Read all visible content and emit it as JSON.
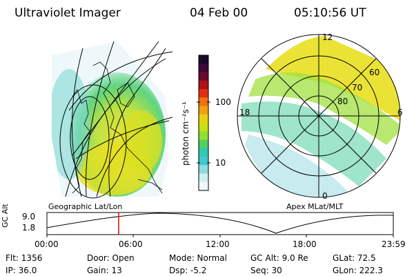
{
  "header": {
    "instrument": "Ultraviolet Imager",
    "date": "04 Feb 00",
    "time": "05:10:56 UT"
  },
  "colorbar": {
    "unit_label": "photon cm⁻²s⁻¹",
    "ticks": [
      "100",
      "10"
    ],
    "colors": [
      "#1a0a2a",
      "#3a0a3a",
      "#6a0a2a",
      "#b0101a",
      "#e03010",
      "#f07010",
      "#f0a010",
      "#e8d010",
      "#c8e010",
      "#90e030",
      "#50d060",
      "#30c8b0",
      "#40c8d0",
      "#90d8e0",
      "#d0eef0",
      "#f0f8fa"
    ]
  },
  "geographic_map": {
    "label": "Geographic Lat/Lon"
  },
  "polar_plot": {
    "label": "Apex MLat/MLT",
    "mlt_labels": {
      "top": "12",
      "left": "18",
      "right": "6",
      "bottom": "0"
    },
    "lat_labels": [
      "60",
      "70",
      "80"
    ]
  },
  "timeline": {
    "ylabel": "GC Alt",
    "yticks": [
      "9.0",
      "1.8"
    ],
    "xticks": [
      "00:00",
      "06:00",
      "12:00",
      "18:00",
      "23:59"
    ],
    "marker_time": "05:10:56"
  },
  "info": {
    "flt": "Flt: 1356",
    "ip": "IP: 36.0",
    "door": "Door: Open",
    "gain": "Gain: 13",
    "mode": "Mode: Normal",
    "dsp": "Dsp:   -5.2",
    "gcalt": "GC Alt: 9.0 Re",
    "seq": "Seq: 30",
    "glat": "GLat:  72.5",
    "glon": "GLon: 222.3"
  }
}
